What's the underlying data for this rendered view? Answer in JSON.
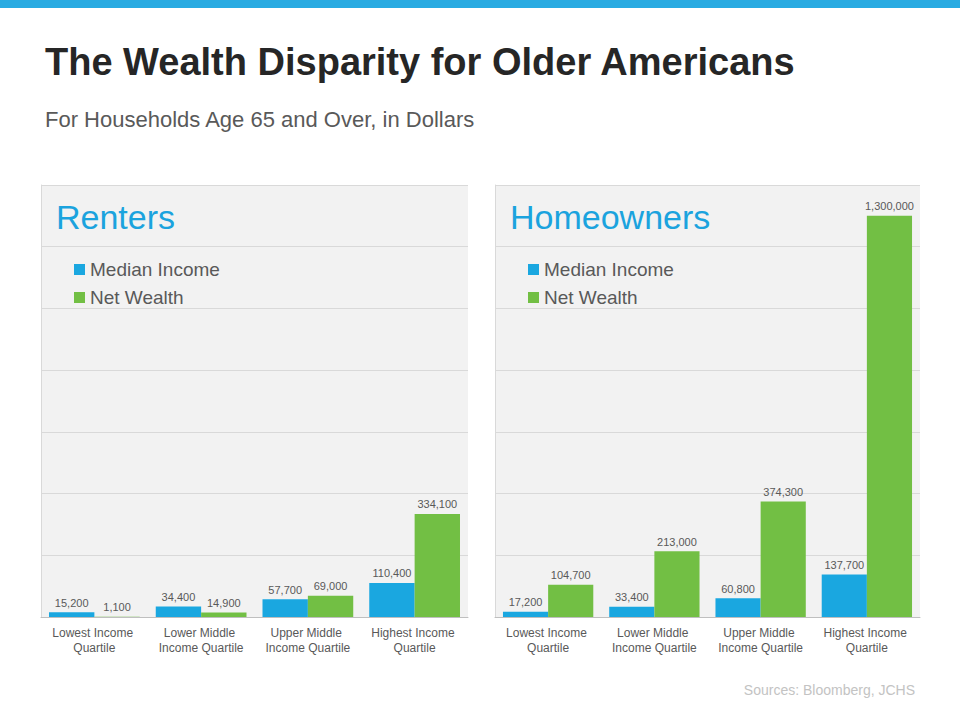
{
  "title": "The Wealth Disparity for Older Americans",
  "subtitle": "For Households Age 65 and Over, in Dollars",
  "annotations": [
    "Sources: Bloomberg, JCHS"
  ],
  "chart_data": [
    {
      "type": "bar",
      "title": "Renters",
      "categories": [
        "Lowest Income Quartile",
        "Lower Middle Income Quartile",
        "Upper Middle Income Quartile",
        "Highest Income Quartile"
      ],
      "series": [
        {
          "name": "Median Income",
          "color": "#1aa7e0",
          "values": [
            15200,
            34400,
            57700,
            110400
          ],
          "value_labels": [
            "15,200",
            "34,400",
            "57,700",
            "110,400"
          ]
        },
        {
          "name": "Net Wealth",
          "color": "#72bf44",
          "values": [
            1100,
            14900,
            69000,
            334100
          ],
          "value_labels": [
            "1,100",
            "14,900",
            "69,000",
            "334,100"
          ]
        }
      ],
      "ylim": [
        0,
        1400000
      ],
      "yticks": [
        0,
        200000,
        400000,
        600000,
        800000,
        1000000,
        1200000,
        1400000
      ],
      "grid": true,
      "legend": "upper left",
      "data_labels": true,
      "tick_labels": "x"
    },
    {
      "type": "bar",
      "title": "Homeowners",
      "categories": [
        "Lowest Income Quartile",
        "Lower Middle Income Quartile",
        "Upper Middle Income Quartile",
        "Highest Income Quartile"
      ],
      "series": [
        {
          "name": "Median Income",
          "color": "#1aa7e0",
          "values": [
            17200,
            33400,
            60800,
            137700
          ],
          "value_labels": [
            "17,200",
            "33,400",
            "60,800",
            "137,700"
          ]
        },
        {
          "name": "Net Wealth",
          "color": "#72bf44",
          "values": [
            104700,
            213000,
            374300,
            1300000
          ],
          "value_labels": [
            "104,700",
            "213,000",
            "374,300",
            "1,300,000"
          ]
        }
      ],
      "ylim": [
        0,
        1400000
      ],
      "yticks": [
        0,
        200000,
        400000,
        600000,
        800000,
        1000000,
        1200000,
        1400000
      ],
      "grid": true,
      "legend": "upper left",
      "data_labels": true,
      "tick_labels": "x"
    }
  ]
}
